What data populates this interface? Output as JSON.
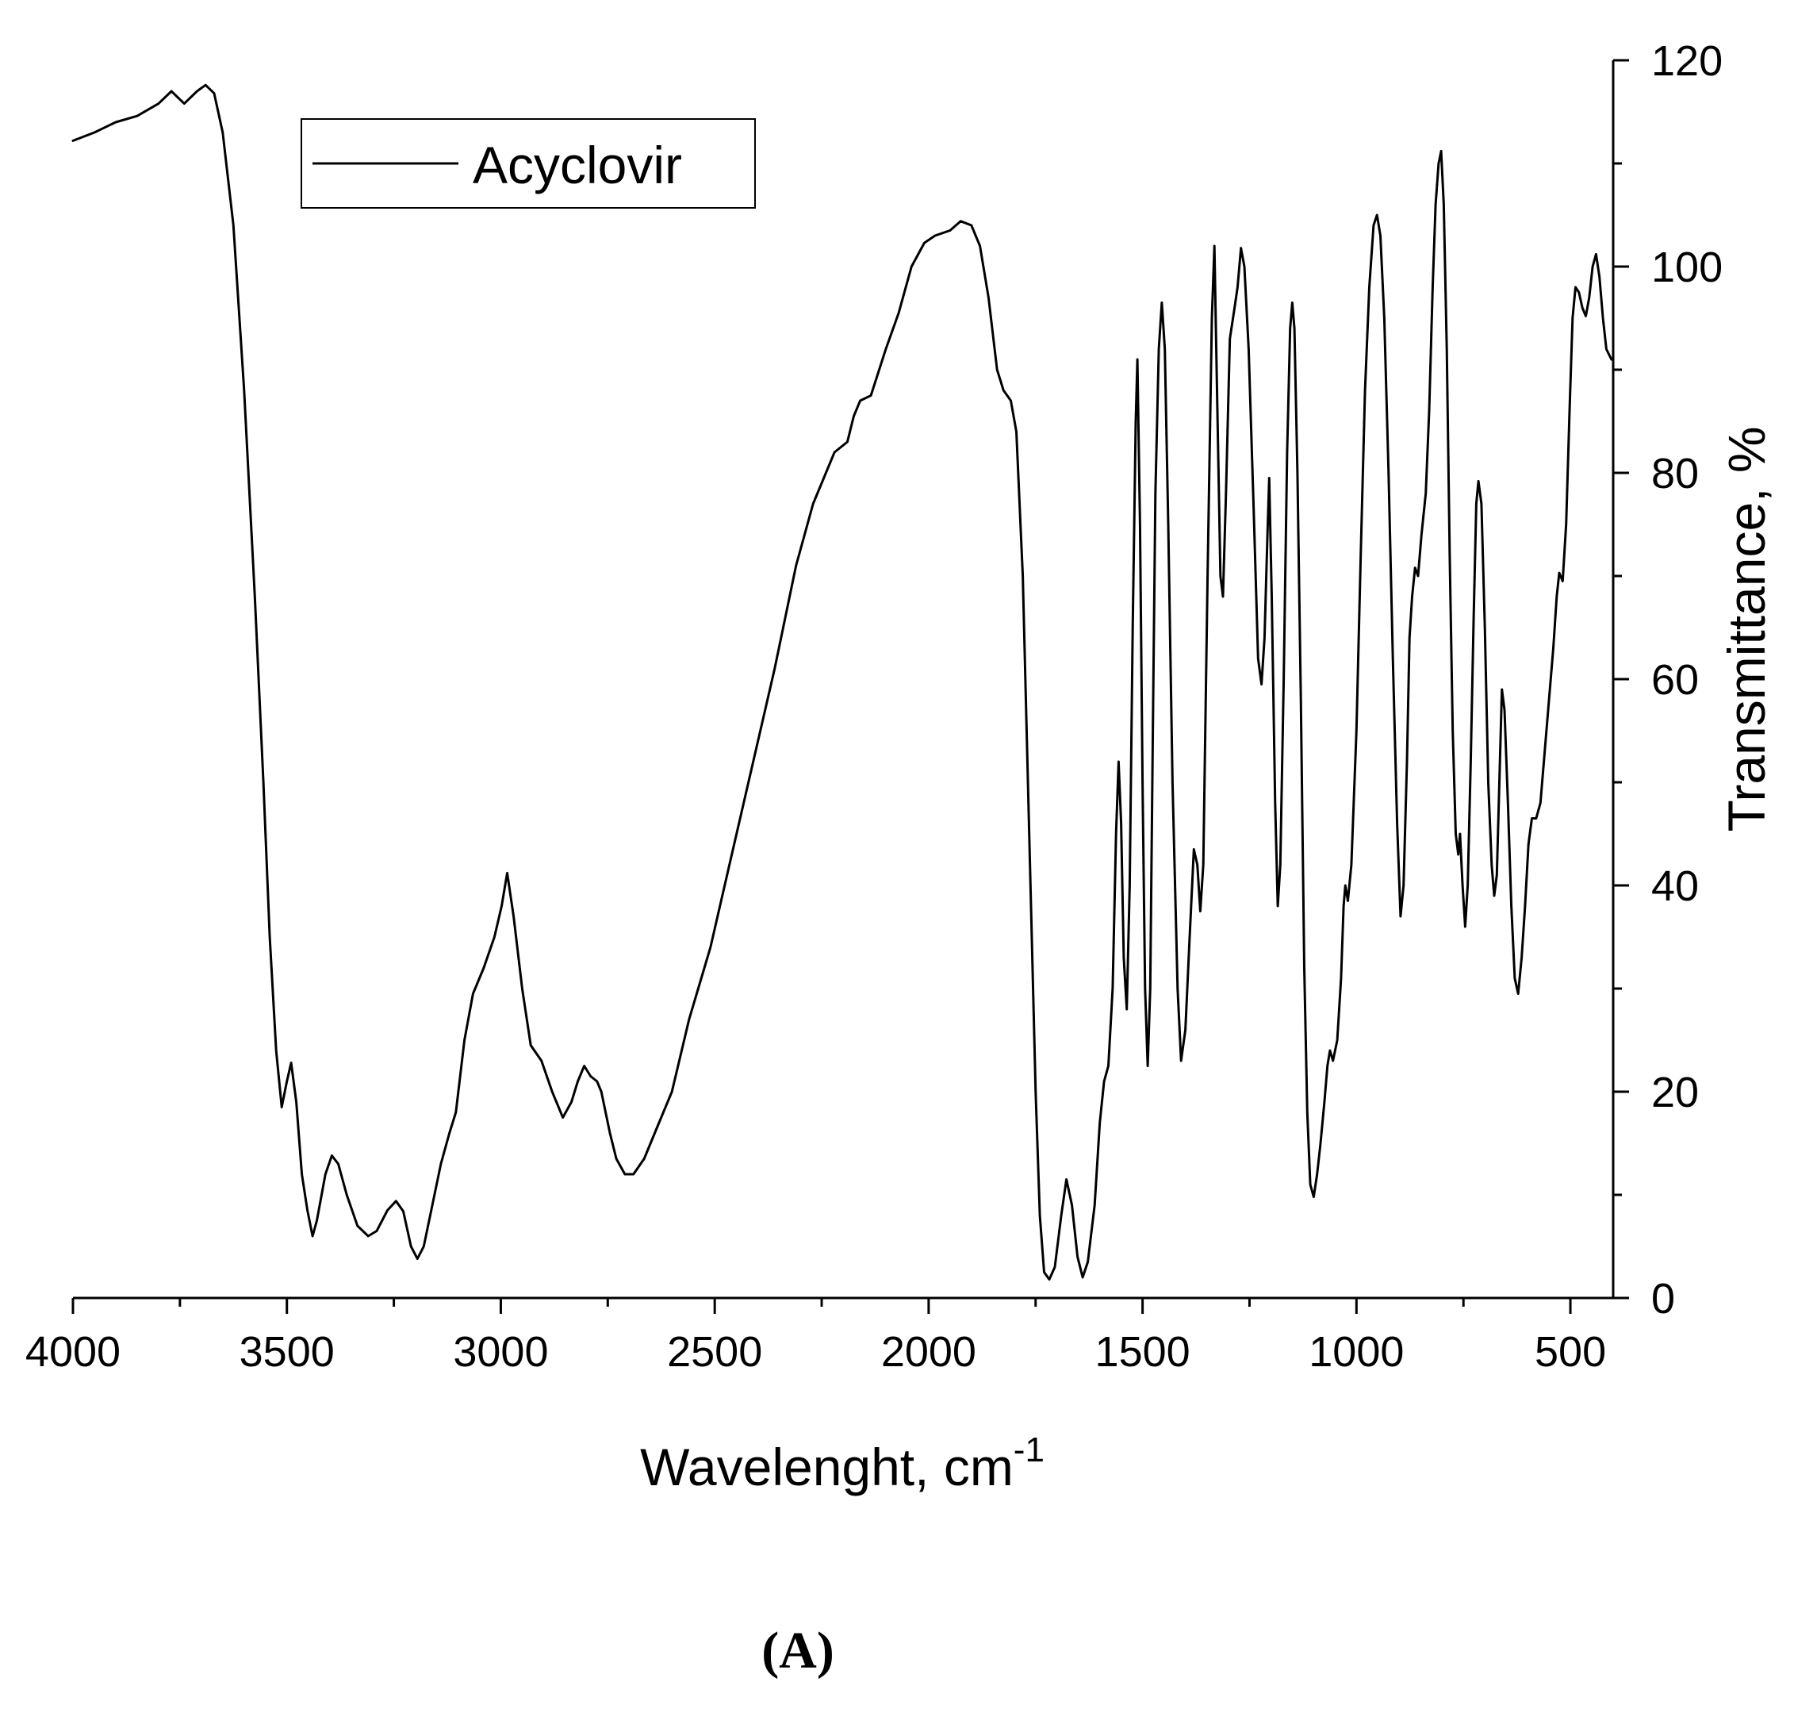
{
  "chart_data": {
    "type": "line",
    "xlabel": "Wavelenght, cm",
    "xlabel_superscript": "-1",
    "ylabel": "Transmittance, %",
    "xlim": [
      4000,
      400
    ],
    "ylim": [
      0,
      120
    ],
    "x_ticks": [
      4000,
      3500,
      3000,
      2500,
      2000,
      1500,
      1000,
      500
    ],
    "y_ticks": [
      0,
      20,
      40,
      60,
      80,
      100,
      120
    ],
    "y_axis_side": "right",
    "grid": false,
    "legend_position": "top-left",
    "line_color": "#000000",
    "series": [
      {
        "name": "Acyclovir",
        "points": [
          [
            4000,
            112.2
          ],
          [
            3950,
            113
          ],
          [
            3900,
            114
          ],
          [
            3850,
            114.6
          ],
          [
            3800,
            115.8
          ],
          [
            3770,
            117
          ],
          [
            3740,
            115.8
          ],
          [
            3710,
            117
          ],
          [
            3690,
            117.6
          ],
          [
            3670,
            116.8
          ],
          [
            3650,
            113
          ],
          [
            3625,
            104
          ],
          [
            3600,
            88
          ],
          [
            3575,
            68
          ],
          [
            3555,
            50
          ],
          [
            3540,
            35
          ],
          [
            3525,
            24
          ],
          [
            3512,
            18.5
          ],
          [
            3500,
            21
          ],
          [
            3490,
            22.8
          ],
          [
            3478,
            19
          ],
          [
            3465,
            12
          ],
          [
            3452,
            8.5
          ],
          [
            3440,
            6
          ],
          [
            3430,
            7.5
          ],
          [
            3410,
            12
          ],
          [
            3395,
            13.8
          ],
          [
            3380,
            13
          ],
          [
            3360,
            10
          ],
          [
            3335,
            7
          ],
          [
            3310,
            6
          ],
          [
            3290,
            6.5
          ],
          [
            3265,
            8.5
          ],
          [
            3245,
            9.4
          ],
          [
            3228,
            8.4
          ],
          [
            3210,
            5
          ],
          [
            3195,
            3.8
          ],
          [
            3180,
            5
          ],
          [
            3160,
            9
          ],
          [
            3140,
            13
          ],
          [
            3120,
            16
          ],
          [
            3105,
            18
          ],
          [
            3085,
            25
          ],
          [
            3065,
            29.5
          ],
          [
            3040,
            32
          ],
          [
            3015,
            35
          ],
          [
            2998,
            38
          ],
          [
            2985,
            41.2
          ],
          [
            2970,
            37
          ],
          [
            2950,
            30
          ],
          [
            2930,
            24.5
          ],
          [
            2905,
            23
          ],
          [
            2880,
            20
          ],
          [
            2855,
            17.5
          ],
          [
            2835,
            19
          ],
          [
            2820,
            21
          ],
          [
            2805,
            22.5
          ],
          [
            2790,
            21.5
          ],
          [
            2775,
            21
          ],
          [
            2765,
            20
          ],
          [
            2745,
            16
          ],
          [
            2730,
            13.5
          ],
          [
            2710,
            12
          ],
          [
            2690,
            12
          ],
          [
            2665,
            13.5
          ],
          [
            2635,
            16.5
          ],
          [
            2600,
            20
          ],
          [
            2560,
            27
          ],
          [
            2510,
            34
          ],
          [
            2460,
            43
          ],
          [
            2410,
            52
          ],
          [
            2360,
            61
          ],
          [
            2310,
            71
          ],
          [
            2270,
            77
          ],
          [
            2220,
            82
          ],
          [
            2190,
            83
          ],
          [
            2175,
            85.5
          ],
          [
            2160,
            87
          ],
          [
            2135,
            87.5
          ],
          [
            2100,
            92
          ],
          [
            2070,
            95.5
          ],
          [
            2040,
            100
          ],
          [
            2010,
            102.3
          ],
          [
            1985,
            103
          ],
          [
            1950,
            103.5
          ],
          [
            1925,
            104.4
          ],
          [
            1900,
            104
          ],
          [
            1880,
            102
          ],
          [
            1860,
            97
          ],
          [
            1840,
            90
          ],
          [
            1825,
            88
          ],
          [
            1808,
            87
          ],
          [
            1795,
            84
          ],
          [
            1780,
            70
          ],
          [
            1765,
            45
          ],
          [
            1750,
            20
          ],
          [
            1740,
            8
          ],
          [
            1730,
            2.5
          ],
          [
            1718,
            1.8
          ],
          [
            1705,
            3
          ],
          [
            1690,
            8
          ],
          [
            1678,
            11.5
          ],
          [
            1665,
            9
          ],
          [
            1652,
            4
          ],
          [
            1640,
            2
          ],
          [
            1628,
            3.5
          ],
          [
            1612,
            9
          ],
          [
            1600,
            17
          ],
          [
            1590,
            21
          ],
          [
            1580,
            22.5
          ],
          [
            1570,
            30
          ],
          [
            1562,
            45
          ],
          [
            1556,
            52
          ],
          [
            1550,
            46
          ],
          [
            1544,
            33
          ],
          [
            1537,
            28
          ],
          [
            1530,
            40
          ],
          [
            1523,
            65
          ],
          [
            1516,
            85
          ],
          [
            1512,
            91
          ],
          [
            1506,
            75
          ],
          [
            1500,
            50
          ],
          [
            1494,
            30
          ],
          [
            1488,
            22.5
          ],
          [
            1482,
            30
          ],
          [
            1476,
            55
          ],
          [
            1470,
            78
          ],
          [
            1462,
            92
          ],
          [
            1455,
            96.5
          ],
          [
            1448,
            92
          ],
          [
            1440,
            75
          ],
          [
            1430,
            50
          ],
          [
            1418,
            30
          ],
          [
            1410,
            23
          ],
          [
            1400,
            26
          ],
          [
            1390,
            35
          ],
          [
            1380,
            43.5
          ],
          [
            1372,
            42
          ],
          [
            1365,
            37.5
          ],
          [
            1358,
            42
          ],
          [
            1348,
            70
          ],
          [
            1338,
            95
          ],
          [
            1332,
            102
          ],
          [
            1326,
            88
          ],
          [
            1318,
            70
          ],
          [
            1312,
            68
          ],
          [
            1305,
            78
          ],
          [
            1296,
            93
          ],
          [
            1285,
            96
          ],
          [
            1278,
            98
          ],
          [
            1270,
            101.8
          ],
          [
            1262,
            100
          ],
          [
            1252,
            92
          ],
          [
            1240,
            76
          ],
          [
            1230,
            62
          ],
          [
            1222,
            59.5
          ],
          [
            1215,
            64
          ],
          [
            1208,
            74
          ],
          [
            1204,
            79.5
          ],
          [
            1198,
            68
          ],
          [
            1190,
            48
          ],
          [
            1184,
            38
          ],
          [
            1178,
            42
          ],
          [
            1170,
            60
          ],
          [
            1162,
            82
          ],
          [
            1155,
            94
          ],
          [
            1150,
            96.5
          ],
          [
            1145,
            94
          ],
          [
            1138,
            80
          ],
          [
            1130,
            58
          ],
          [
            1122,
            32
          ],
          [
            1115,
            18
          ],
          [
            1108,
            11
          ],
          [
            1100,
            9.8
          ],
          [
            1092,
            12
          ],
          [
            1084,
            15
          ],
          [
            1075,
            19
          ],
          [
            1068,
            22.5
          ],
          [
            1062,
            24
          ],
          [
            1055,
            23
          ],
          [
            1045,
            25
          ],
          [
            1036,
            31
          ],
          [
            1030,
            38
          ],
          [
            1026,
            40
          ],
          [
            1020,
            38.5
          ],
          [
            1012,
            42
          ],
          [
            1000,
            55
          ],
          [
            990,
            72
          ],
          [
            980,
            88
          ],
          [
            970,
            98
          ],
          [
            960,
            104
          ],
          [
            952,
            105
          ],
          [
            944,
            103
          ],
          [
            935,
            95
          ],
          [
            925,
            80
          ],
          [
            915,
            62
          ],
          [
            905,
            46
          ],
          [
            897,
            37
          ],
          [
            890,
            40
          ],
          [
            882,
            52
          ],
          [
            876,
            64
          ],
          [
            870,
            68
          ],
          [
            863,
            70.8
          ],
          [
            856,
            70
          ],
          [
            848,
            74
          ],
          [
            838,
            78
          ],
          [
            830,
            86
          ],
          [
            822,
            98
          ],
          [
            815,
            106
          ],
          [
            808,
            110
          ],
          [
            802,
            111.2
          ],
          [
            796,
            106
          ],
          [
            789,
            92
          ],
          [
            782,
            72
          ],
          [
            775,
            55
          ],
          [
            768,
            45
          ],
          [
            762,
            43
          ],
          [
            758,
            45
          ],
          [
            752,
            40
          ],
          [
            746,
            36
          ],
          [
            740,
            40
          ],
          [
            733,
            52
          ],
          [
            726,
            66
          ],
          [
            720,
            77
          ],
          [
            715,
            79.2
          ],
          [
            708,
            77
          ],
          [
            700,
            65
          ],
          [
            692,
            50
          ],
          [
            684,
            42
          ],
          [
            678,
            39
          ],
          [
            672,
            41
          ],
          [
            666,
            50
          ],
          [
            660,
            59
          ],
          [
            654,
            57
          ],
          [
            646,
            48
          ],
          [
            638,
            38
          ],
          [
            630,
            31
          ],
          [
            622,
            29.5
          ],
          [
            614,
            33
          ],
          [
            606,
            38
          ],
          [
            598,
            44
          ],
          [
            590,
            46.5
          ],
          [
            580,
            46.5
          ],
          [
            570,
            48
          ],
          [
            560,
            53
          ],
          [
            550,
            58
          ],
          [
            540,
            63
          ],
          [
            532,
            68
          ],
          [
            526,
            70.3
          ],
          [
            518,
            69.5
          ],
          [
            510,
            75
          ],
          [
            502,
            86
          ],
          [
            495,
            95
          ],
          [
            488,
            98
          ],
          [
            480,
            97.5
          ],
          [
            472,
            96
          ],
          [
            464,
            95.2
          ],
          [
            456,
            97
          ],
          [
            448,
            100
          ],
          [
            440,
            101.2
          ],
          [
            432,
            99
          ],
          [
            424,
            95
          ],
          [
            416,
            92
          ],
          [
            410,
            91.5
          ],
          [
            404,
            91
          ]
        ]
      }
    ]
  },
  "panel_label": "(A)"
}
